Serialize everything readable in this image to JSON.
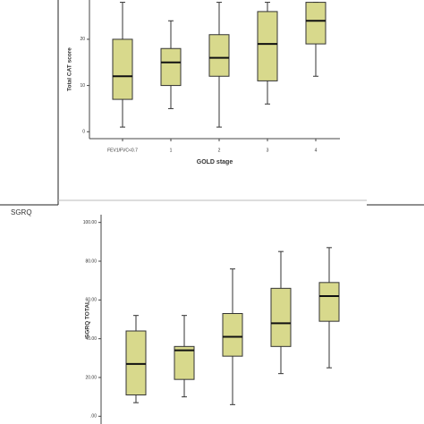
{
  "chart_data": [
    {
      "type": "box",
      "x_label": "GOLD stage",
      "y_label": "Total CAT score",
      "categories": [
        "FEV1/FVC<0.7",
        "1",
        "2",
        "3",
        "4"
      ],
      "color": "#d8d98c",
      "boxes": [
        {
          "low": 1,
          "q1": 7,
          "median": 12,
          "q3": 20,
          "high": 28
        },
        {
          "low": 5,
          "q1": 10,
          "median": 15,
          "q3": 18,
          "high": 24
        },
        {
          "low": 1,
          "q1": 12,
          "median": 16,
          "q3": 21,
          "high": 28
        },
        {
          "low": 6,
          "q1": 11,
          "median": 19,
          "q3": 26,
          "high": 28
        },
        {
          "low": 12,
          "q1": 19,
          "median": 24,
          "q3": 28,
          "high": 28
        }
      ],
      "ylim": [
        -1.5,
        28.5
      ],
      "yticks": [
        0,
        10,
        20
      ]
    },
    {
      "type": "box",
      "title": "SGRQ",
      "y_label": "SGRQ TOTAL",
      "categories": [
        null,
        null,
        null,
        null,
        null
      ],
      "color": "#d8d98c",
      "boxes": [
        {
          "low": 7,
          "q1": 11,
          "median": 27,
          "q3": 44,
          "high": 52
        },
        {
          "low": 10,
          "q1": 19,
          "median": 34,
          "q3": 36,
          "high": 52
        },
        {
          "low": 6,
          "q1": 31,
          "median": 41,
          "q3": 53,
          "high": 76
        },
        {
          "low": 22,
          "q1": 36,
          "median": 48,
          "q3": 66,
          "high": 85
        },
        {
          "low": 25,
          "q1": 49,
          "median": 62,
          "q3": 69,
          "high": 87
        }
      ],
      "ylim": [
        -4,
        104
      ],
      "yticks": [
        {
          "value": 0,
          "label": ".00"
        },
        {
          "value": 20,
          "label": "20.00"
        },
        {
          "value": 40,
          "label": "40.00"
        },
        {
          "value": 60,
          "label": "60.00"
        },
        {
          "value": 80,
          "label": "80.00"
        },
        {
          "value": 100,
          "label": "100.00"
        }
      ]
    }
  ]
}
